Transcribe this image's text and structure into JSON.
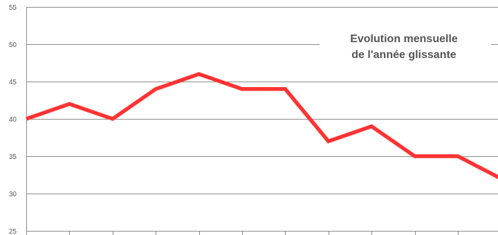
{
  "chart_data": {
    "type": "line",
    "title": "Evolution mensuelle de l'année glissante",
    "title_lines": [
      "Evolution mensuelle",
      "de l'année glissante"
    ],
    "xlabel": "",
    "ylabel": "",
    "ylim": [
      25,
      55
    ],
    "yticks": [
      25,
      30,
      35,
      40,
      45,
      50,
      55
    ],
    "ytick_labels": [
      "25",
      "30",
      "35",
      "40",
      "45",
      "50",
      "55"
    ],
    "grid": true,
    "legend": "none",
    "x": [
      1,
      2,
      3,
      4,
      5,
      6,
      7,
      8,
      9,
      10,
      11,
      12
    ],
    "series": [
      {
        "values": [
          40,
          42,
          40,
          44,
          46,
          44,
          44,
          37,
          39,
          35,
          35,
          32
        ],
        "color": "#ff3333"
      }
    ],
    "colors": {
      "grid": "#8a8a8a",
      "axis_text": "#555555",
      "title_text": "#555555",
      "line": "#ff3333"
    }
  }
}
